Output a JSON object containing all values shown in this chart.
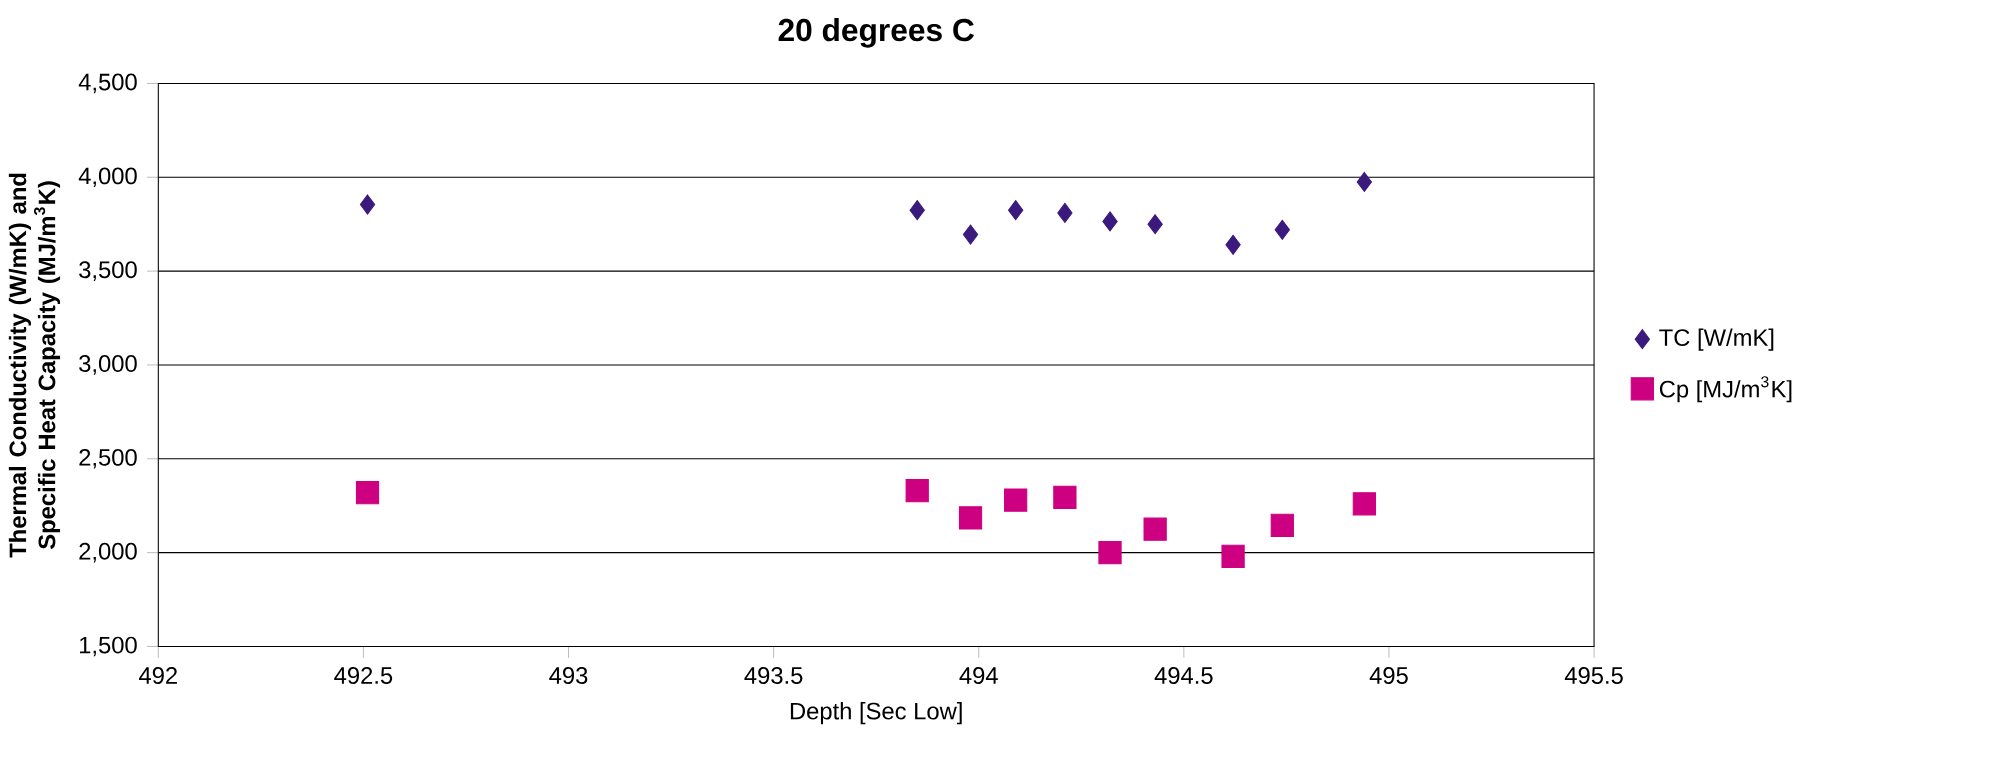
{
  "chart_data": {
    "type": "scatter",
    "title": "20 degrees C",
    "xlabel": "Depth [Sec Low]",
    "ylabel": "Thermal Conductivity (W/mK) and Specific Heat Capacity (MJ/m$^{3}$K)",
    "x": [
      492.51,
      493.85,
      493.98,
      494.09,
      494.21,
      494.32,
      494.43,
      494.62,
      494.74,
      494.94
    ],
    "series": [
      {
        "name": "TC [W/mK]",
        "color": "#3b1a7e",
        "marker": "diamond",
        "values": [
          3855,
          3825,
          3695,
          3825,
          3810,
          3765,
          3750,
          3640,
          3720,
          3975
        ]
      },
      {
        "name": "Cp [MJ/m$^{3}$K]",
        "color": "#cc0080",
        "marker": "square",
        "values": [
          2320,
          2330,
          2185,
          2280,
          2295,
          2000,
          2125,
          1980,
          2145,
          2260
        ]
      }
    ],
    "xlim": [
      492,
      495.5
    ],
    "xticks": [
      492,
      492.5,
      493,
      493.5,
      494,
      494.5,
      495,
      495.5
    ],
    "ylim": [
      1500,
      4500
    ],
    "yticks": [
      {
        "value": 1500,
        "label": "1,500"
      },
      {
        "value": 2000,
        "label": "2,000"
      },
      {
        "value": 2500,
        "label": "2,500"
      },
      {
        "value": 3000,
        "label": "3,000"
      },
      {
        "value": 3500,
        "label": "3,500"
      },
      {
        "value": 4000,
        "label": "4,000"
      },
      {
        "value": 4500,
        "label": "4,500"
      }
    ],
    "grid": "y",
    "legend": "right"
  }
}
